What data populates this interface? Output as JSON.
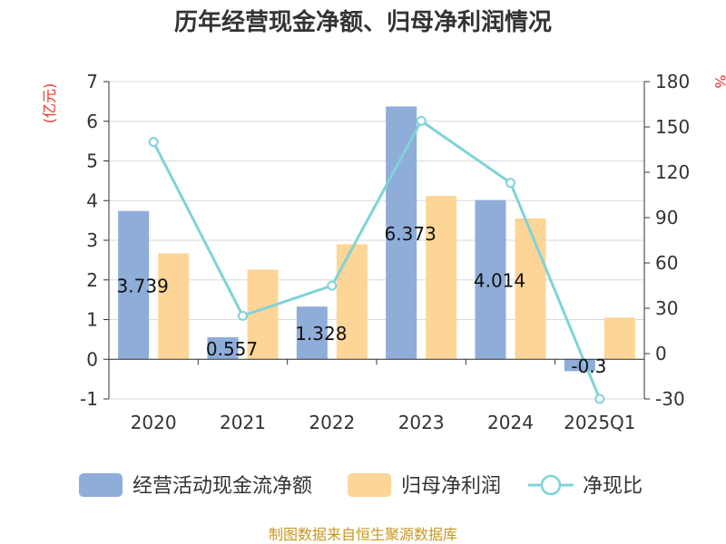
{
  "title": "历年经营现金净额、归母净利润情况",
  "source": "制图数据来自恒生聚源数据库",
  "left_unit": "(亿元)",
  "right_unit": "%",
  "colors": {
    "cash": "#8fadd9",
    "profit": "#fdd596",
    "ratio": "#7fd3d8"
  },
  "chart_data": {
    "type": "bar",
    "categories": [
      "2020",
      "2021",
      "2022",
      "2023",
      "2024",
      "2025Q1"
    ],
    "series": [
      {
        "name": "经营活动现金流净额",
        "axis": "left",
        "kind": "bar",
        "values": [
          3.739,
          0.557,
          1.328,
          6.373,
          4.014,
          -0.3
        ],
        "labels": [
          "3.739",
          "0.557",
          "1.328",
          "6.373",
          "4.014",
          "-0.3"
        ]
      },
      {
        "name": "归母净利润",
        "axis": "left",
        "kind": "bar",
        "values": [
          2.67,
          2.26,
          2.9,
          4.12,
          3.55,
          1.05
        ]
      },
      {
        "name": "净现比",
        "axis": "right",
        "kind": "line",
        "values": [
          140,
          25,
          45,
          154,
          113,
          -30
        ]
      }
    ],
    "ylim": [
      -1,
      7
    ],
    "yticks": [
      -1,
      0,
      1,
      2,
      3,
      4,
      5,
      6,
      7
    ],
    "y2lim": [
      -30,
      180
    ],
    "y2ticks": [
      -30,
      0,
      30,
      60,
      90,
      120,
      150,
      180
    ],
    "legend": "bottom",
    "grid": true
  }
}
